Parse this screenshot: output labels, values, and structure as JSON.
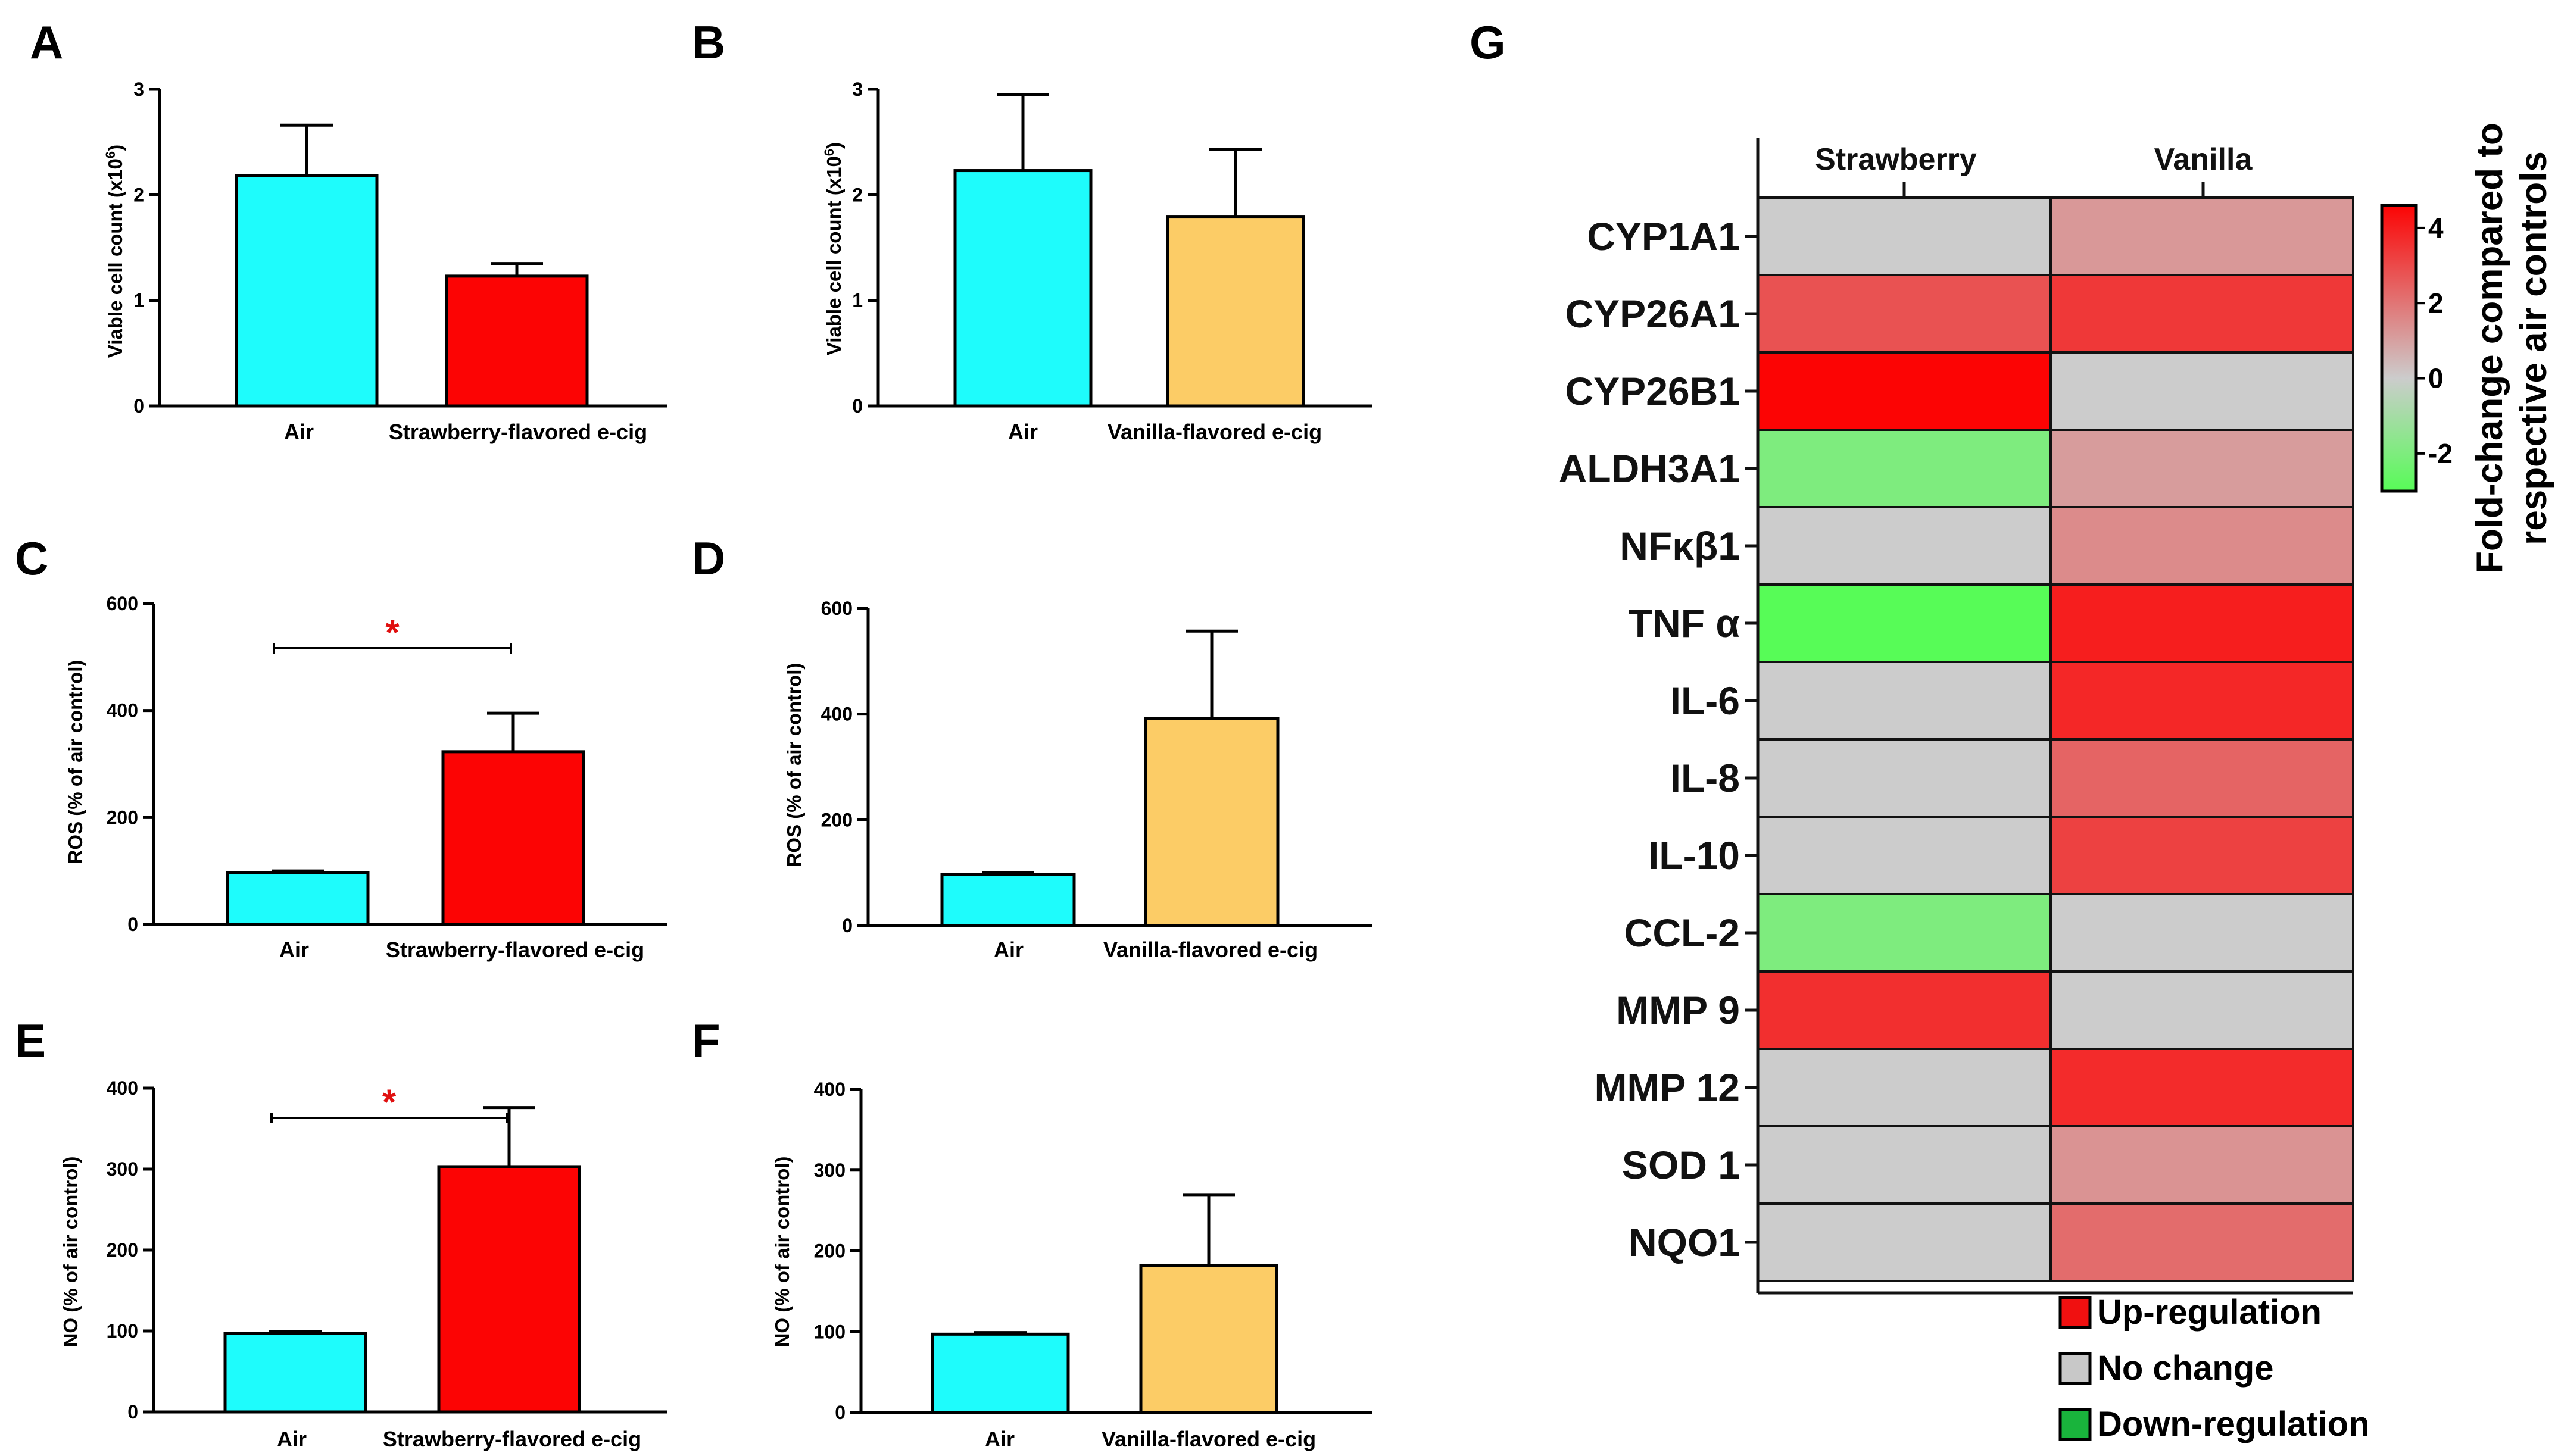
{
  "chart_data": [
    {
      "panel": "A",
      "type": "bar",
      "ylabel": "Viable cell count (x10",
      "ylabel_sup": "6",
      "ylabel_end": ")",
      "ylim": [
        0,
        3
      ],
      "yticks": [
        0,
        1,
        2,
        3
      ],
      "categories": [
        "Air",
        "Strawberry-flavored e-cig"
      ],
      "values": [
        2.18,
        1.23
      ],
      "errors": [
        0.48,
        0.12
      ],
      "colors": [
        "#1efcfc",
        "#fc0404"
      ],
      "significance": ""
    },
    {
      "panel": "B",
      "type": "bar",
      "ylabel": "Viable cell count (x10",
      "ylabel_sup": "6",
      "ylabel_end": ")",
      "ylim": [
        0,
        3
      ],
      "yticks": [
        0,
        1,
        2,
        3
      ],
      "categories": [
        "Air",
        "Vanilla-flavored e-cig"
      ],
      "values": [
        2.23,
        1.79
      ],
      "errors": [
        0.72,
        0.64
      ],
      "colors": [
        "#1efcfc",
        "#fccc66"
      ],
      "significance": ""
    },
    {
      "panel": "C",
      "type": "bar",
      "ylabel": "ROS (% of air control)",
      "ylim": [
        0,
        600
      ],
      "yticks": [
        0,
        200,
        400,
        600
      ],
      "categories": [
        "Air",
        "Strawberry-flavored e-cig"
      ],
      "values": [
        97,
        323
      ],
      "errors": [
        3,
        72
      ],
      "colors": [
        "#1efcfc",
        "#fc0404"
      ],
      "significance": "*"
    },
    {
      "panel": "D",
      "type": "bar",
      "ylabel": "ROS (% of air control)",
      "ylim": [
        0,
        600
      ],
      "yticks": [
        0,
        200,
        400,
        600
      ],
      "categories": [
        "Air",
        "Vanilla-flavored e-cig"
      ],
      "values": [
        97,
        392
      ],
      "errors": [
        3,
        165
      ],
      "colors": [
        "#1efcfc",
        "#fccc66"
      ],
      "significance": ""
    },
    {
      "panel": "E",
      "type": "bar",
      "ylabel": "NO (% of air control)",
      "ylim": [
        0,
        400
      ],
      "yticks": [
        0,
        100,
        200,
        300,
        400
      ],
      "categories": [
        "Air",
        "Strawberry-flavored e-cig"
      ],
      "values": [
        97,
        303
      ],
      "errors": [
        2,
        73
      ],
      "colors": [
        "#1efcfc",
        "#fc0404"
      ],
      "significance": "*"
    },
    {
      "panel": "F",
      "type": "bar",
      "ylabel": "NO (% of air control)",
      "ylim": [
        0,
        400
      ],
      "yticks": [
        0,
        100,
        200,
        300,
        400
      ],
      "categories": [
        "Air",
        "Vanilla-flavored e-cig"
      ],
      "values": [
        97,
        182
      ],
      "errors": [
        2,
        87
      ],
      "colors": [
        "#1efcfc",
        "#fccc66"
      ],
      "significance": ""
    },
    {
      "panel": "G",
      "type": "heatmap",
      "columns": [
        "Strawberry",
        "Vanilla"
      ],
      "rows": [
        "CYP1A1",
        "CYP26A1",
        "CYP26B1",
        "ALDH3A1",
        "NFκβ1",
        "TNF α",
        "IL-6",
        "IL-8",
        "IL-10",
        "CCL-2",
        "MMP 9",
        "MMP 12",
        "SOD 1",
        "NQO1"
      ],
      "values": [
        [
          0,
          1.2
        ],
        [
          2.8,
          3.4
        ],
        [
          4.6,
          0
        ],
        [
          -2.0,
          1.1
        ],
        [
          0,
          1.5
        ],
        [
          -3.0,
          4.0
        ],
        [
          0,
          3.8
        ],
        [
          0,
          2.4
        ],
        [
          0,
          3.2
        ],
        [
          -2.0,
          0
        ],
        [
          3.6,
          0
        ],
        [
          0,
          3.7
        ],
        [
          0,
          1.3
        ],
        [
          0,
          2.2
        ]
      ],
      "colorbar": {
        "min": -3,
        "max": 4.6,
        "ticks": [
          -2,
          0,
          2,
          4
        ],
        "title_line1": "Fold-change compared to",
        "title_line2": "respective air controls",
        "low_color": "#57fc57",
        "mid_color": "#cccccc",
        "high_color": "#fc0404"
      },
      "legend": [
        {
          "label": "Up-regulation",
          "color": "#f01010"
        },
        {
          "label": "No change",
          "color": "#c8c8c8"
        },
        {
          "label": "Down-regulation",
          "color": "#19b43c"
        }
      ]
    }
  ]
}
